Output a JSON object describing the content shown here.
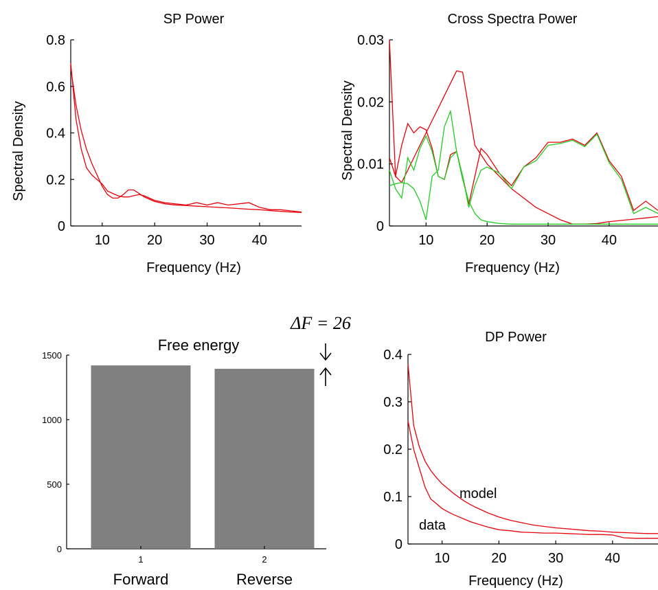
{
  "chart_data": [
    {
      "type": "line",
      "title": "SP Power",
      "xlabel": "Frequency (Hz)",
      "ylabel": "Spectral Density",
      "xlim": [
        4,
        48
      ],
      "ylim": [
        0,
        0.8
      ],
      "xticks": [
        "10",
        "20",
        "30",
        "40"
      ],
      "yticks": [
        "0",
        "0.2",
        "0.4",
        "0.6",
        "0.8"
      ],
      "colors": {
        "model": "#e8000b",
        "data": "#e8000b"
      },
      "series": [
        {
          "x": [
            4,
            5,
            6,
            7,
            8,
            9,
            10,
            11,
            12,
            13,
            14,
            15,
            16,
            17,
            18,
            19,
            20,
            22,
            24,
            26,
            28,
            30,
            32,
            34,
            36,
            38,
            40,
            42,
            44,
            46,
            48
          ],
          "y": [
            0.68,
            0.52,
            0.41,
            0.33,
            0.27,
            0.22,
            0.17,
            0.135,
            0.12,
            0.12,
            0.135,
            0.155,
            0.155,
            0.14,
            0.125,
            0.115,
            0.105,
            0.095,
            0.09,
            0.088,
            0.085,
            0.083,
            0.08,
            0.078,
            0.075,
            0.072,
            0.07,
            0.066,
            0.063,
            0.06,
            0.058
          ]
        },
        {
          "x": [
            4,
            5,
            6,
            7,
            8,
            9,
            10,
            11,
            12,
            13,
            14,
            15,
            16,
            17,
            18,
            19,
            20,
            22,
            24,
            26,
            28,
            30,
            32,
            34,
            36,
            38,
            40,
            42,
            44,
            46,
            48
          ],
          "y": [
            0.7,
            0.46,
            0.33,
            0.25,
            0.22,
            0.2,
            0.18,
            0.15,
            0.14,
            0.13,
            0.125,
            0.125,
            0.13,
            0.135,
            0.13,
            0.12,
            0.11,
            0.1,
            0.095,
            0.09,
            0.1,
            0.09,
            0.1,
            0.09,
            0.095,
            0.1,
            0.08,
            0.07,
            0.07,
            0.065,
            0.06
          ]
        }
      ]
    },
    {
      "type": "line",
      "title": "Cross Spectra Power",
      "xlabel": "Frequency (Hz)",
      "ylabel": "Spectral Density",
      "xlim": [
        4,
        48
      ],
      "ylim": [
        0,
        0.03
      ],
      "xticks": [
        "10",
        "20",
        "30",
        "40"
      ],
      "yticks": [
        "0",
        "0.01",
        "0.02",
        "0.03"
      ],
      "colors": {
        "red": "#e8000b",
        "green": "#22cc22"
      },
      "series": [
        {
          "color": "red",
          "x": [
            4,
            5,
            6,
            7,
            8,
            9,
            10,
            11,
            12,
            13,
            14,
            15,
            16,
            17,
            18,
            19,
            20,
            22,
            24,
            26,
            28,
            30,
            32,
            34,
            36,
            38,
            40,
            42,
            44,
            46,
            48
          ],
          "y": [
            0.03,
            0.008,
            0.007,
            0.009,
            0.011,
            0.013,
            0.015,
            0.017,
            0.019,
            0.021,
            0.023,
            0.025,
            0.0248,
            0.019,
            0.013,
            0.0115,
            0.01,
            0.008,
            0.006,
            0.0045,
            0.003,
            0.002,
            0.001,
            0.0003,
            0.0003,
            0.0004,
            0.0007,
            0.0009,
            0.0011,
            0.0013,
            0.0015
          ]
        },
        {
          "color": "red",
          "x": [
            4,
            5,
            6,
            7,
            8,
            9,
            10,
            11,
            12,
            13,
            14,
            15,
            16,
            17,
            18,
            19,
            20,
            22,
            24,
            26,
            28,
            30,
            32,
            34,
            36,
            38,
            40,
            42,
            44,
            46,
            48
          ],
          "y": [
            0.011,
            0.008,
            0.013,
            0.0165,
            0.015,
            0.016,
            0.0155,
            0.0125,
            0.008,
            0.0075,
            0.0115,
            0.012,
            0.008,
            0.0035,
            0.008,
            0.0125,
            0.0115,
            0.0085,
            0.0065,
            0.0095,
            0.011,
            0.0135,
            0.0135,
            0.014,
            0.013,
            0.015,
            0.0105,
            0.008,
            0.0025,
            0.004,
            0.0025
          ]
        },
        {
          "color": "green",
          "x": [
            4,
            5,
            6,
            7,
            8,
            9,
            10,
            11,
            12,
            13,
            14,
            15,
            16,
            17,
            18,
            19,
            20,
            22,
            24,
            26,
            28,
            30,
            32,
            34,
            36,
            38,
            40,
            42,
            44,
            46,
            48
          ],
          "y": [
            0.009,
            0.006,
            0.0045,
            0.011,
            0.009,
            0.0125,
            0.0145,
            0.012,
            0.008,
            0.0075,
            0.011,
            0.012,
            0.008,
            0.003,
            0.0065,
            0.009,
            0.0095,
            0.0085,
            0.006,
            0.0095,
            0.0105,
            0.013,
            0.0133,
            0.0138,
            0.0128,
            0.0148,
            0.0102,
            0.0075,
            0.002,
            0.003,
            0.002
          ]
        },
        {
          "color": "green",
          "x": [
            4,
            5,
            6,
            7,
            8,
            9,
            10,
            11,
            12,
            13,
            14,
            15,
            16,
            17,
            18,
            19,
            20,
            22,
            24,
            26,
            28,
            30,
            32,
            34,
            36,
            38,
            40,
            42,
            44,
            46,
            48
          ],
          "y": [
            0.0065,
            0.0068,
            0.007,
            0.0068,
            0.006,
            0.004,
            0.001,
            0.008,
            0.009,
            0.016,
            0.0185,
            0.012,
            0.0075,
            0.004,
            0.002,
            0.001,
            0.0007,
            0.0004,
            0.0003,
            0.0003,
            0.0003,
            0.0003,
            0.0003,
            0.0003,
            0.0003,
            0.0003,
            0.0003,
            0.0003,
            0.0003,
            0.0003,
            0.0003
          ]
        }
      ]
    },
    {
      "type": "bar",
      "title": "Free energy",
      "categories": [
        "1",
        "2"
      ],
      "category_labels": [
        "Forward",
        "Reverse"
      ],
      "values": [
        1420,
        1394
      ],
      "ylim": [
        0,
        1500
      ],
      "yticks": [
        "0",
        "500",
        "1000",
        "1500"
      ],
      "bar_color": "#808080",
      "annotation": "ΔF = 26"
    },
    {
      "type": "line",
      "title": "DP Power",
      "xlabel": "Frequency (Hz)",
      "ylabel": "",
      "xlim": [
        4,
        48
      ],
      "ylim": [
        0,
        0.4
      ],
      "xticks": [
        "10",
        "20",
        "30",
        "40"
      ],
      "yticks": [
        "0",
        "0.1",
        "0.2",
        "0.3",
        "0.4"
      ],
      "annotations": [
        "model",
        "data"
      ],
      "colors": {
        "model": "#e8000b",
        "data": "#e8000b"
      },
      "series": [
        {
          "name": "model",
          "x": [
            4,
            5,
            6,
            7,
            8,
            9,
            10,
            11,
            12,
            13,
            14,
            15,
            16,
            18,
            20,
            22,
            24,
            26,
            28,
            30,
            32,
            34,
            36,
            38,
            40,
            42,
            44,
            46,
            48
          ],
          "y": [
            0.38,
            0.25,
            0.205,
            0.175,
            0.155,
            0.14,
            0.127,
            0.117,
            0.107,
            0.098,
            0.09,
            0.083,
            0.077,
            0.066,
            0.057,
            0.05,
            0.045,
            0.04,
            0.037,
            0.034,
            0.032,
            0.03,
            0.028,
            0.027,
            0.025,
            0.024,
            0.023,
            0.022,
            0.022
          ]
        },
        {
          "name": "data",
          "x": [
            4,
            5,
            6,
            7,
            8,
            9,
            10,
            11,
            12,
            13,
            14,
            15,
            16,
            18,
            20,
            22,
            24,
            26,
            28,
            30,
            32,
            34,
            36,
            38,
            40,
            42,
            44,
            46,
            48
          ],
          "y": [
            0.26,
            0.2,
            0.16,
            0.12,
            0.095,
            0.085,
            0.075,
            0.068,
            0.062,
            0.057,
            0.052,
            0.047,
            0.043,
            0.036,
            0.03,
            0.028,
            0.025,
            0.024,
            0.023,
            0.023,
            0.022,
            0.021,
            0.02,
            0.02,
            0.019,
            0.013,
            0.012,
            0.012,
            0.012
          ]
        }
      ]
    }
  ]
}
